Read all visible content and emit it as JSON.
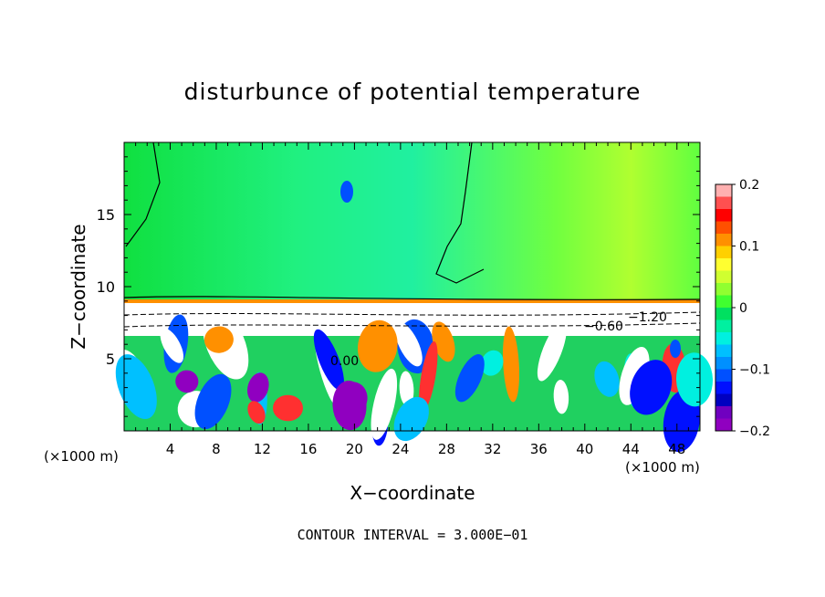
{
  "chart_data": {
    "type": "heatmap",
    "title": "disturbunce of potential temperature",
    "xlabel": "X−coordinate",
    "ylabel": "Z−coordinate",
    "x_unit_left": "(×1000 m)",
    "x_unit_right": "(×1000 m)",
    "xlim": [
      0,
      50
    ],
    "ylim": [
      0,
      20
    ],
    "x_ticks": [
      4,
      8,
      12,
      16,
      20,
      24,
      28,
      32,
      36,
      40,
      44,
      48
    ],
    "x_tick_labels": [
      "4",
      "8",
      "12",
      "16",
      "20",
      "24",
      "28",
      "32",
      "36",
      "40",
      "44",
      "48"
    ],
    "y_ticks": [
      5,
      10,
      15
    ],
    "y_tick_labels": [
      "5",
      "10",
      "15"
    ],
    "colorbar": {
      "range": [
        -0.2,
        0.2
      ],
      "ticks": [
        0.2,
        0.1,
        0,
        -0.1,
        -0.2
      ],
      "tick_labels": [
        "0.2",
        "0.1",
        "0",
        "−0.1",
        "−0.2"
      ],
      "colors": [
        "#ffb0b0",
        "#ff5050",
        "#ff0000",
        "#ff5000",
        "#ff9000",
        "#ffd000",
        "#ffff30",
        "#d0ff30",
        "#90ff30",
        "#40ff30",
        "#00e060",
        "#00f0a0",
        "#00f0e0",
        "#00c0ff",
        "#0090ff",
        "#0050ff",
        "#0010ff",
        "#0000c0",
        "#7000c0",
        "#9000c0"
      ]
    },
    "contour_labels": [
      "−0.60",
      "−1.20",
      "0.00"
    ],
    "contour_interval": "CONTOUR INTERVAL = 3.000E−01"
  }
}
